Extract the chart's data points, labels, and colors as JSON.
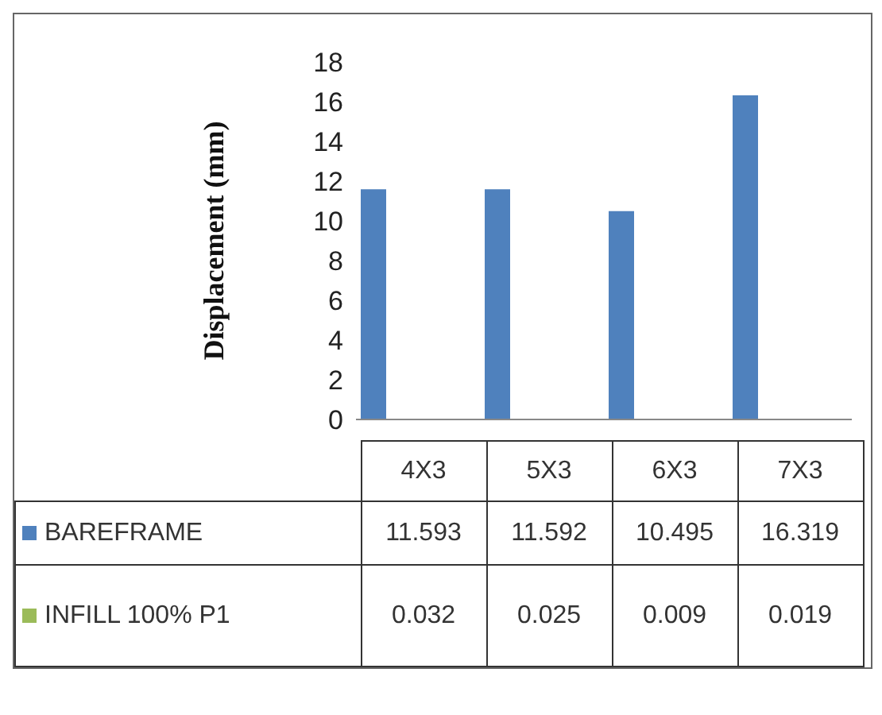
{
  "chart_data": {
    "type": "bar",
    "ylabel": "Displacement (mm)",
    "categories": [
      "4X3",
      "5X3",
      "6X3",
      "7X3"
    ],
    "series": [
      {
        "name": "BAREFRAME",
        "color": "#4f81bd",
        "values": [
          11.593,
          11.592,
          10.495,
          16.319
        ]
      },
      {
        "name": "INFILL 100% P1",
        "color": "#9bbb59",
        "values": [
          0.032,
          0.025,
          0.009,
          0.019
        ]
      }
    ],
    "ylim": [
      0,
      18
    ],
    "yticks": [
      0,
      2,
      4,
      6,
      8,
      10,
      12,
      14,
      16,
      18
    ],
    "legend": "bottom",
    "data_labels": true
  }
}
